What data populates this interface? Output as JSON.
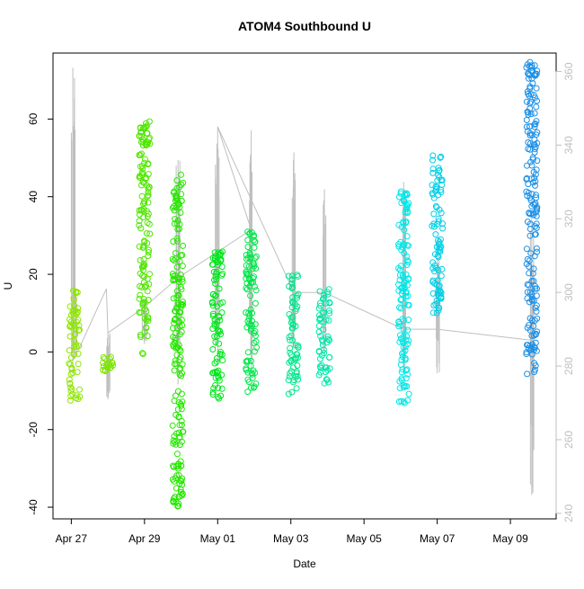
{
  "chart_data": {
    "type": "scatter",
    "title": "ATOM4 Southbound U",
    "xlabel": "Date",
    "ylabel": "U",
    "xlim": [
      "2017-04-26 12:00",
      "2017-05-10 06:00"
    ],
    "ylim": [
      -43,
      77
    ],
    "y2lim": [
      238.5,
      365
    ],
    "x_ticks": [
      "Apr 27",
      "Apr 29",
      "May 01",
      "May 03",
      "May 05",
      "May 07",
      "May 09"
    ],
    "x_tick_dates": [
      "2017-04-27",
      "2017-04-29",
      "2017-05-01",
      "2017-05-03",
      "2017-05-05",
      "2017-05-07",
      "2017-05-09"
    ],
    "y_ticks": [
      -40,
      -20,
      0,
      20,
      40,
      60
    ],
    "y2_ticks": [
      240,
      260,
      280,
      300,
      320,
      340,
      360
    ],
    "grid": false,
    "legend": "none",
    "marker": "open-circle",
    "points_color_scale": "green-to-blue by time",
    "series": [
      {
        "date": "2017-04-27 02:00",
        "y_range": [
          -13,
          16
        ],
        "color": "#8ee600"
      },
      {
        "date": "2017-04-28 00:00",
        "y_range": [
          -5,
          -1
        ],
        "color": "#7ce600"
      },
      {
        "date": "2017-04-29 00:00",
        "y_range": [
          -1,
          60
        ],
        "color": "#50e600"
      },
      {
        "date": "2017-04-29 22:00",
        "y_range": [
          -40,
          46
        ],
        "color": "#26e600"
      },
      {
        "date": "2017-05-01 00:00",
        "y_range": [
          -13,
          27
        ],
        "color": "#00e61c"
      },
      {
        "date": "2017-05-01 22:00",
        "y_range": [
          -11,
          31
        ],
        "color": "#00e64a"
      },
      {
        "date": "2017-05-03 02:00",
        "y_range": [
          -11,
          20
        ],
        "color": "#00e68c"
      },
      {
        "date": "2017-05-03 22:00",
        "y_range": [
          -9,
          17
        ],
        "color": "#00e6a8"
      },
      {
        "date": "2017-05-06 02:00",
        "y_range": [
          -14,
          42
        ],
        "color": "#00e6e6"
      },
      {
        "date": "2017-05-07 00:00",
        "y_range": [
          10,
          51
        ],
        "color": "#00cfe6"
      },
      {
        "date": "2017-05-09 14:00",
        "y_range": [
          -6,
          75
        ],
        "color": "#1a8fe6"
      }
    ],
    "secondary_series": {
      "color": "#bfbfbf",
      "segments": [
        {
          "date": "2017-04-27 01:00",
          "y_range": [
            278,
            361
          ]
        },
        {
          "date": "2017-04-27 02:00",
          "y_range": [
            282,
            301
          ]
        },
        {
          "date": "2017-04-28 00:00",
          "y_range": [
            271,
            289
          ]
        },
        {
          "date": "2017-04-29 00:00",
          "y_range": [
            286,
            298
          ]
        },
        {
          "date": "2017-04-29 22:00",
          "y_range": [
            275,
            336
          ]
        },
        {
          "date": "2017-05-01 00:00",
          "y_range": [
            280,
            345
          ]
        },
        {
          "date": "2017-05-01 22:00",
          "y_range": [
            278,
            344
          ]
        },
        {
          "date": "2017-05-03 02:00",
          "y_range": [
            285,
            338
          ]
        },
        {
          "date": "2017-05-03 22:00",
          "y_range": [
            283,
            328
          ]
        },
        {
          "date": "2017-05-06 02:00",
          "y_range": [
            278,
            330
          ]
        },
        {
          "date": "2017-05-07 00:00",
          "y_range": [
            278,
            311
          ]
        },
        {
          "date": "2017-05-09 14:00",
          "y_range": [
            245,
            322
          ]
        }
      ],
      "connector": [
        [
          "2017-04-27 02:00",
          282
        ],
        [
          "2017-04-27 23:00",
          301
        ],
        [
          "2017-04-28 00:00",
          289
        ],
        [
          "2017-04-29 00:00",
          296
        ],
        [
          "2017-04-29 22:00",
          304
        ],
        [
          "2017-05-01 22:00",
          317
        ],
        [
          "2017-05-01 00:00",
          345
        ],
        [
          "2017-05-03 02:00",
          300
        ],
        [
          "2017-05-03 22:00",
          300
        ],
        [
          "2017-05-06 02:00",
          290
        ],
        [
          "2017-05-07 00:00",
          290
        ],
        [
          "2017-05-09 14:00",
          287
        ]
      ]
    }
  }
}
